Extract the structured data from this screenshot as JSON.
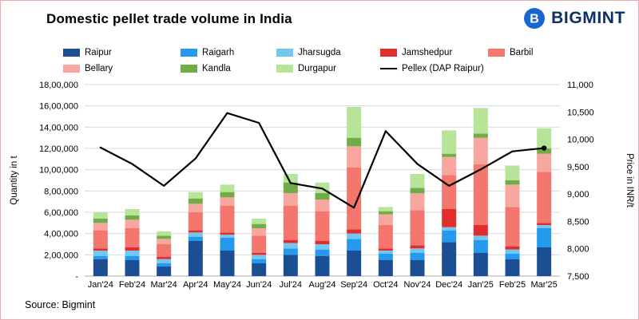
{
  "header": {
    "title": "Domestic pellet trade volume in India",
    "brand": "BIGMINT"
  },
  "source_note": "Source: Bigmint",
  "colors": {
    "border": "#edabab",
    "brand_text": "#0d2f66",
    "brand_icon": "#1767cf",
    "grid": "#d9d9d9",
    "axis": "#aeaeae"
  },
  "chart_data": {
    "type": "bar",
    "subtype": "stacked-bar-with-line",
    "title": "Domestic pellet trade volume in India",
    "legend_position": "top",
    "grid": true,
    "categories": [
      "Jan'24",
      "Feb'24",
      "Mar'24",
      "Apr'24",
      "May'24",
      "Jun'24",
      "Jul'24",
      "Aug'24",
      "Sep'24",
      "Oct'24",
      "Nov'24",
      "Dec'24",
      "Jan'25",
      "Feb'25",
      "Mar'25"
    ],
    "series": [
      {
        "name": "Raipur",
        "color": "#1b4e92",
        "values": [
          160000,
          150000,
          90000,
          330000,
          240000,
          120000,
          200000,
          190000,
          240000,
          150000,
          150000,
          320000,
          220000,
          160000,
          270000
        ]
      },
      {
        "name": "Raigarh",
        "color": "#2499ee",
        "values": [
          30000,
          40000,
          30000,
          40000,
          120000,
          40000,
          60000,
          60000,
          110000,
          60000,
          70000,
          110000,
          120000,
          50000,
          180000
        ]
      },
      {
        "name": "Jharsugda",
        "color": "#72c7f1",
        "values": [
          50000,
          50000,
          40000,
          40000,
          30000,
          40000,
          50000,
          50000,
          50000,
          30000,
          40000,
          30000,
          40000,
          40000,
          30000
        ]
      },
      {
        "name": "Jamshedpur",
        "color": "#e22d2d",
        "values": [
          20000,
          30000,
          20000,
          20000,
          20000,
          20000,
          30000,
          30000,
          40000,
          20000,
          30000,
          170000,
          100000,
          30000,
          20000
        ]
      },
      {
        "name": "Barbil",
        "color": "#f4766c",
        "values": [
          170000,
          180000,
          120000,
          170000,
          250000,
          160000,
          320000,
          280000,
          580000,
          220000,
          330000,
          320000,
          570000,
          370000,
          480000
        ]
      },
      {
        "name": "Bellary",
        "color": "#f7a6a0",
        "values": [
          70000,
          80000,
          50000,
          80000,
          80000,
          70000,
          120000,
          110000,
          200000,
          100000,
          160000,
          170000,
          250000,
          210000,
          170000
        ]
      },
      {
        "name": "Kandla",
        "color": "#70ad47",
        "values": [
          40000,
          40000,
          30000,
          50000,
          50000,
          40000,
          100000,
          60000,
          80000,
          30000,
          50000,
          30000,
          40000,
          40000,
          50000
        ]
      },
      {
        "name": "Durgapur",
        "color": "#b8e49a",
        "values": [
          60000,
          60000,
          40000,
          60000,
          70000,
          50000,
          80000,
          100000,
          290000,
          40000,
          130000,
          220000,
          240000,
          140000,
          190000
        ]
      }
    ],
    "line_series": {
      "name": "Pellex (DAP Raipur)",
      "color": "#000000",
      "values": [
        9850,
        9550,
        9150,
        9650,
        10480,
        10300,
        9200,
        9100,
        8750,
        10150,
        9550,
        9150,
        9450,
        9780,
        9840
      ]
    },
    "left_axis": {
      "label": "Quantity in t",
      "min": 0,
      "max": 1800000,
      "step": 200000,
      "zero_label": "-",
      "format": "indian"
    },
    "right_axis": {
      "label": "Price in INR/t",
      "min": 7500,
      "max": 11000,
      "step": 500,
      "format": "comma"
    }
  }
}
